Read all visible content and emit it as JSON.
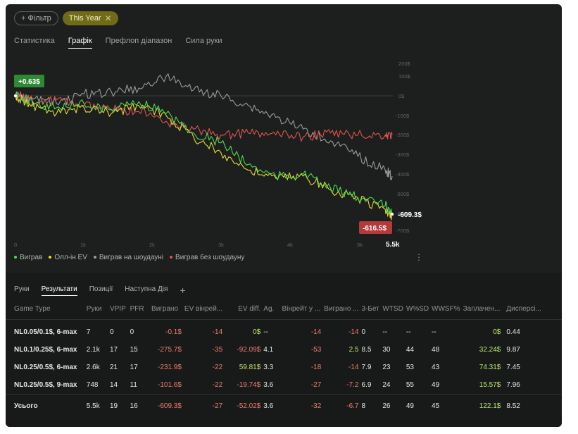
{
  "filters": {
    "add_label": "+ Фільтр",
    "year_label": "This Year",
    "year_close": "✕"
  },
  "top_tabs": [
    "Статистика",
    "Графік",
    "Префлоп діапазон",
    "Сила руки"
  ],
  "chart": {
    "start_badge": "+0.63$",
    "end_badge": "-616.5$",
    "end_label": "-609.3$",
    "y_ticks": [
      "200$",
      "100$",
      "0$",
      "-100$",
      "-200$",
      "-300$",
      "-400$",
      "-500$",
      "-600$",
      "-700$"
    ],
    "x_ticks": [
      "0",
      "1k",
      "2k",
      "3k",
      "4k",
      "5k",
      "5.5k"
    ],
    "colors": {
      "won": "#4fd94f",
      "all_in_ev": "#e8d83a",
      "showdown": "#9a9a9a",
      "non_showdown": "#e05252"
    }
  },
  "chart_data": {
    "type": "line",
    "x_range": [
      0,
      5500
    ],
    "y_range": [
      -700,
      200
    ],
    "series": [
      {
        "name": "Виграв",
        "x": [
          0,
          200,
          600,
          1000,
          1400,
          1800,
          2200,
          2600,
          3000,
          3400,
          3800,
          4200,
          4600,
          5000,
          5400,
          5500
        ],
        "y": [
          0,
          -30,
          -60,
          -40,
          -70,
          -30,
          -90,
          -190,
          -240,
          -350,
          -410,
          -400,
          -470,
          -520,
          -560,
          -609
        ]
      },
      {
        "name": "Олл-ін EV",
        "x": [
          0,
          200,
          600,
          1000,
          1400,
          1800,
          2200,
          2600,
          3000,
          3400,
          3800,
          4200,
          4600,
          5000,
          5400,
          5500
        ],
        "y": [
          0,
          -40,
          -90,
          -60,
          -90,
          -50,
          -100,
          -210,
          -290,
          -380,
          -420,
          -410,
          -480,
          -520,
          -580,
          -616
        ]
      },
      {
        "name": "Виграв на шоудауні",
        "x": [
          0,
          200,
          600,
          1000,
          1400,
          1800,
          2200,
          2600,
          3000,
          3400,
          3800,
          4200,
          4600,
          5000,
          5400,
          5500
        ],
        "y": [
          0,
          -10,
          -40,
          10,
          20,
          40,
          100,
          30,
          0,
          -50,
          -110,
          -170,
          -230,
          -310,
          -380,
          -410
        ]
      },
      {
        "name": "Виграв без шоудауну",
        "x": [
          0,
          200,
          600,
          1000,
          1400,
          1800,
          2200,
          2600,
          3000,
          3400,
          3800,
          4200,
          4600,
          5000,
          5400,
          5500
        ],
        "y": [
          0,
          -20,
          -20,
          -50,
          -70,
          -80,
          -130,
          -170,
          -200,
          -190,
          -200,
          -210,
          -190,
          -200,
          -200,
          -200
        ]
      }
    ]
  },
  "legend": [
    "Виграв",
    "Олл-ін EV",
    "Виграв на шоудауні",
    "Виграв без шоудауну"
  ],
  "bottom_tabs": [
    "Руки",
    "Результати",
    "Позиції",
    "Наступна Дія"
  ],
  "table": {
    "headers": [
      "Game Type",
      "Руки",
      "VPIP",
      "PFR",
      "Виграно",
      "EV вінрей...",
      "EV diff.",
      "Ag.",
      "Вінрейт у ...",
      "Виграно ...",
      "3-Бет",
      "WTSD",
      "W%SD",
      "WWSF%",
      "Заплачен...",
      "Дисперсі..."
    ],
    "rows": [
      [
        "NL0.05/0.1$, 6-max",
        "7",
        "0",
        "0",
        "-0.1$",
        "-14",
        "0$",
        "--",
        "-14",
        "-14",
        "0",
        "--",
        "--",
        "--",
        "0$",
        "0.44"
      ],
      [
        "NL0.1/0.25$, 6-max",
        "2.1k",
        "17",
        "15",
        "-275.7$",
        "-35",
        "-92.09$",
        "4.1",
        "-53",
        "2.5",
        "8.5",
        "30",
        "44",
        "48",
        "32.24$",
        "9.87"
      ],
      [
        "NL0.25/0.5$, 6-max",
        "2.6k",
        "21",
        "17",
        "-231.9$",
        "-22",
        "59.81$",
        "3.3",
        "-18",
        "-14",
        "7.9",
        "23",
        "53",
        "43",
        "74.31$",
        "7.45"
      ],
      [
        "NL0.25/0.5$, 9-max",
        "748",
        "14",
        "11",
        "-101.6$",
        "-22",
        "-19.74$",
        "3.6",
        "-27",
        "-7.2",
        "6.9",
        "24",
        "55",
        "49",
        "15.57$",
        "7.96"
      ]
    ],
    "total": [
      "Усього",
      "5.5k",
      "19",
      "16",
      "-609.3$",
      "-27",
      "-52.02$",
      "3.6",
      "-32",
      "-6.7",
      "8",
      "26",
      "49",
      "45",
      "122.1$",
      "8.52"
    ]
  }
}
